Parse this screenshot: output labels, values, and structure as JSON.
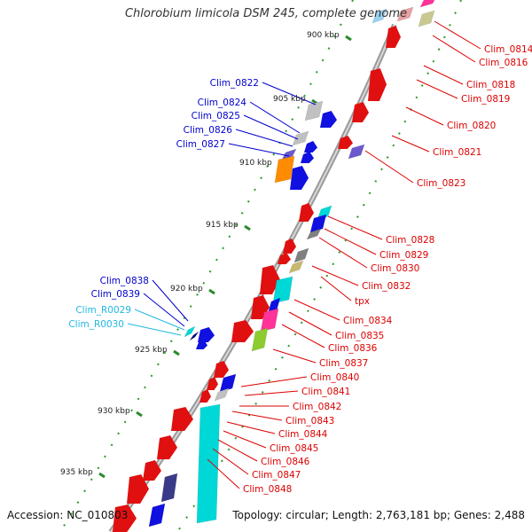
{
  "title": "Chlorobium limicola DSM 245, complete genome",
  "accession": "Accession: NC_010803",
  "topology": "Topology: circular; Length: 2,763,181 bp; Genes: 2,488",
  "colors": {
    "forward_label": "#0000cc",
    "reverse_label": "#dd0000",
    "rna_label": "#22b8e0",
    "backbone": "#999999"
  },
  "kbp_ticks": [
    "900 kbp",
    "905 kbp",
    "910 kbp",
    "915 kbp",
    "920 kbp",
    "925 kbp",
    "930 kbp",
    "935 kbp"
  ],
  "forward_genes": [
    "Clim_0822",
    "Clim_0824",
    "Clim_0825",
    "Clim_0826",
    "Clim_0827",
    "Clim_0838",
    "Clim_0839"
  ],
  "rna_genes": [
    "Clim_R0029",
    "Clim_R0030"
  ],
  "reverse_genes": [
    "Clim_0814",
    "Clim_0816",
    "Clim_0818",
    "Clim_0819",
    "Clim_0820",
    "Clim_0821",
    "Clim_0823",
    "Clim_0828",
    "Clim_0829",
    "Clim_0830",
    "Clim_0832",
    "tpx",
    "Clim_0834",
    "Clim_0835",
    "Clim_0836",
    "Clim_0837",
    "Clim_0840",
    "Clim_0841",
    "Clim_0842",
    "Clim_0843",
    "Clim_0844",
    "Clim_0845",
    "Clim_0846",
    "Clim_0847",
    "Clim_0848"
  ]
}
